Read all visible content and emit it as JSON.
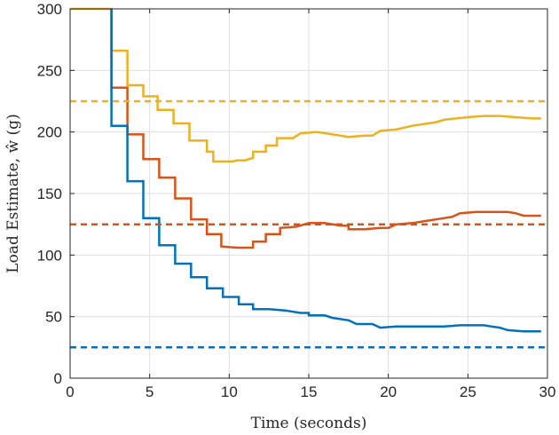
{
  "chart_data": {
    "type": "line",
    "xlabel": "Time (seconds)",
    "ylabel": "Load Estimate, ŵ (g)",
    "xlim": [
      0,
      30
    ],
    "ylim": [
      0,
      300
    ],
    "xticks": [
      0,
      5,
      10,
      15,
      20,
      25,
      30
    ],
    "yticks": [
      0,
      50,
      100,
      150,
      200,
      250,
      300
    ],
    "grid": true,
    "box": true,
    "series": [
      {
        "color": "#EDB120",
        "style": "solid",
        "points": [
          [
            0,
            300
          ],
          [
            2.6,
            300
          ],
          [
            2.6,
            266
          ],
          [
            3.6,
            266
          ],
          [
            3.6,
            238
          ],
          [
            4.6,
            238
          ],
          [
            4.6,
            229
          ],
          [
            5.5,
            229
          ],
          [
            5.5,
            218
          ],
          [
            6.5,
            218
          ],
          [
            6.5,
            207
          ],
          [
            7.5,
            207
          ],
          [
            7.5,
            193
          ],
          [
            8.6,
            193
          ],
          [
            8.6,
            184
          ],
          [
            9.0,
            184
          ],
          [
            9.0,
            176
          ],
          [
            10.2,
            176
          ],
          [
            10.5,
            177
          ],
          [
            11.0,
            177
          ],
          [
            11.5,
            179
          ],
          [
            11.5,
            184
          ],
          [
            12.3,
            184
          ],
          [
            12.3,
            189
          ],
          [
            13.0,
            189
          ],
          [
            13.0,
            195
          ],
          [
            14.0,
            195
          ],
          [
            14.5,
            199
          ],
          [
            15.5,
            200
          ],
          [
            16.5,
            198
          ],
          [
            17.5,
            196
          ],
          [
            18.5,
            197
          ],
          [
            19.0,
            197
          ],
          [
            19.5,
            201
          ],
          [
            20.5,
            202
          ],
          [
            21.5,
            205
          ],
          [
            22.5,
            207
          ],
          [
            23.0,
            208
          ],
          [
            23.5,
            210
          ],
          [
            25.0,
            212
          ],
          [
            26.0,
            213
          ],
          [
            27.0,
            213
          ],
          [
            28.0,
            212
          ],
          [
            29.0,
            211
          ],
          [
            29.6,
            211
          ]
        ]
      },
      {
        "color": "#D95319",
        "style": "solid",
        "points": [
          [
            2.6,
            300
          ],
          [
            2.6,
            236
          ],
          [
            3.6,
            236
          ],
          [
            3.6,
            198
          ],
          [
            4.6,
            198
          ],
          [
            4.6,
            178
          ],
          [
            5.6,
            178
          ],
          [
            5.6,
            163
          ],
          [
            6.6,
            163
          ],
          [
            6.6,
            146
          ],
          [
            7.6,
            146
          ],
          [
            7.6,
            129
          ],
          [
            8.6,
            129
          ],
          [
            8.6,
            117
          ],
          [
            9.5,
            117
          ],
          [
            9.5,
            107
          ],
          [
            10.5,
            106
          ],
          [
            11.5,
            106
          ],
          [
            11.5,
            111
          ],
          [
            12.3,
            111
          ],
          [
            12.3,
            117
          ],
          [
            13.2,
            117
          ],
          [
            13.2,
            122
          ],
          [
            14.2,
            123
          ],
          [
            15.0,
            126
          ],
          [
            16.0,
            126
          ],
          [
            17.0,
            124
          ],
          [
            17.5,
            124
          ],
          [
            17.5,
            121
          ],
          [
            18.5,
            121
          ],
          [
            19.5,
            122
          ],
          [
            20.0,
            122
          ],
          [
            20.5,
            125
          ],
          [
            21.5,
            126
          ],
          [
            22.5,
            128
          ],
          [
            23.5,
            130
          ],
          [
            24.0,
            131
          ],
          [
            24.5,
            134
          ],
          [
            25.5,
            135
          ],
          [
            26.5,
            135
          ],
          [
            27.5,
            135
          ],
          [
            28.0,
            134
          ],
          [
            28.5,
            132
          ],
          [
            29.6,
            132
          ]
        ]
      },
      {
        "color": "#0072BD",
        "style": "solid",
        "points": [
          [
            2.6,
            300
          ],
          [
            2.6,
            205
          ],
          [
            3.6,
            205
          ],
          [
            3.6,
            160
          ],
          [
            4.6,
            160
          ],
          [
            4.6,
            130
          ],
          [
            5.6,
            130
          ],
          [
            5.6,
            108
          ],
          [
            6.6,
            108
          ],
          [
            6.6,
            93
          ],
          [
            7.6,
            93
          ],
          [
            7.6,
            82
          ],
          [
            8.6,
            82
          ],
          [
            8.6,
            73
          ],
          [
            9.6,
            73
          ],
          [
            9.6,
            66
          ],
          [
            10.6,
            66
          ],
          [
            10.6,
            60
          ],
          [
            11.5,
            60
          ],
          [
            11.5,
            56
          ],
          [
            12.5,
            56
          ],
          [
            13.5,
            55
          ],
          [
            14.5,
            53
          ],
          [
            15.0,
            53
          ],
          [
            15.0,
            51
          ],
          [
            16.0,
            51
          ],
          [
            16.5,
            49
          ],
          [
            17.5,
            47
          ],
          [
            18.0,
            44
          ],
          [
            19.0,
            44
          ],
          [
            19.5,
            41
          ],
          [
            20.5,
            42
          ],
          [
            21.5,
            42
          ],
          [
            22.5,
            42
          ],
          [
            23.5,
            42
          ],
          [
            24.5,
            43
          ],
          [
            25.0,
            43
          ],
          [
            26.0,
            43
          ],
          [
            26.5,
            42
          ],
          [
            27.0,
            41
          ],
          [
            27.5,
            39
          ],
          [
            28.5,
            38
          ],
          [
            29.6,
            38
          ]
        ]
      },
      {
        "color": "#EDB120",
        "style": "dashed",
        "points": [
          [
            0,
            225
          ],
          [
            30,
            225
          ]
        ]
      },
      {
        "color": "#D95319",
        "style": "dashed",
        "points": [
          [
            0,
            125
          ],
          [
            30,
            125
          ]
        ]
      },
      {
        "color": "#0072BD",
        "style": "dashed",
        "points": [
          [
            0,
            25
          ],
          [
            30,
            25
          ]
        ]
      }
    ]
  }
}
